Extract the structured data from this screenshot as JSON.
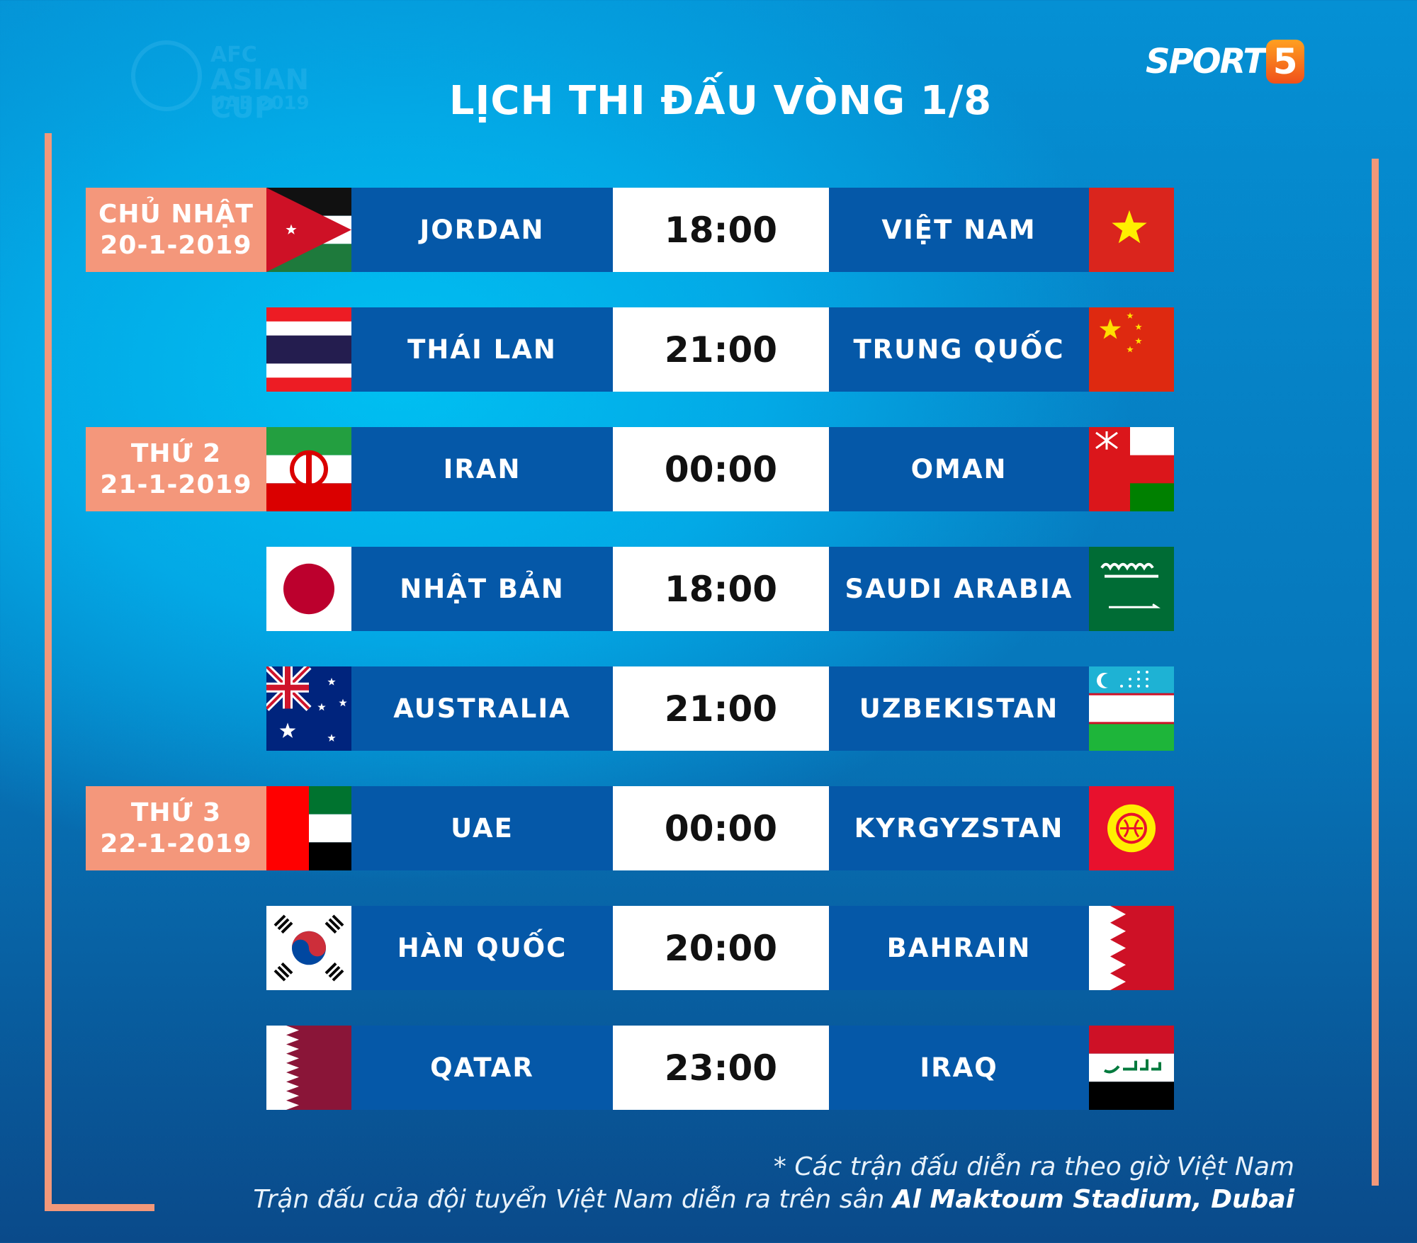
{
  "title": "LỊCH THI ĐẤU VÒNG 1/8",
  "brand": {
    "sport": "SPORT",
    "number": "5",
    "accent": "#f26522"
  },
  "watermark": {
    "line1": "AFC",
    "line2": "ASIAN CUP",
    "line3": "UAE 2019"
  },
  "colors": {
    "team_box": "#0558a8",
    "date_box": "#f4977b",
    "time_box": "#ffffff"
  },
  "matches": [
    {
      "date_day": "CHỦ NHẬT",
      "date": "20-1-2019",
      "home": "JORDAN",
      "home_flag": "jordan-flag-icon",
      "time": "18:00",
      "away": "VIỆT NAM",
      "away_flag": "vietnam-flag-icon"
    },
    {
      "home": "THÁI LAN",
      "home_flag": "thailand-flag-icon",
      "time": "21:00",
      "away": "TRUNG QUỐC",
      "away_flag": "china-flag-icon"
    },
    {
      "date_day": "THỨ 2",
      "date": "21-1-2019",
      "home": "IRAN",
      "home_flag": "iran-flag-icon",
      "time": "00:00",
      "away": "OMAN",
      "away_flag": "oman-flag-icon"
    },
    {
      "home": "NHẬT BẢN",
      "home_flag": "japan-flag-icon",
      "time": "18:00",
      "away": "SAUDI ARABIA",
      "away_flag": "saudi-arabia-flag-icon"
    },
    {
      "home": "AUSTRALIA",
      "home_flag": "australia-flag-icon",
      "time": "21:00",
      "away": "UZBEKISTAN",
      "away_flag": "uzbekistan-flag-icon"
    },
    {
      "date_day": "THỨ 3",
      "date": "22-1-2019",
      "home": "UAE",
      "home_flag": "uae-flag-icon",
      "time": "00:00",
      "away": "KYRGYZSTAN",
      "away_flag": "kyrgyzstan-flag-icon"
    },
    {
      "home": "HÀN QUỐC",
      "home_flag": "south-korea-flag-icon",
      "time": "20:00",
      "away": "BAHRAIN",
      "away_flag": "bahrain-flag-icon"
    },
    {
      "home": "QATAR",
      "home_flag": "qatar-flag-icon",
      "time": "23:00",
      "away": "IRAQ",
      "away_flag": "iraq-flag-icon"
    }
  ],
  "footer": {
    "note": "* Các trận đấu diễn ra theo giờ Việt Nam",
    "venue_prefix": "Trận đấu của đội tuyển Việt Nam diễn ra trên sân ",
    "venue": "Al Maktoum Stadium, Dubai"
  }
}
